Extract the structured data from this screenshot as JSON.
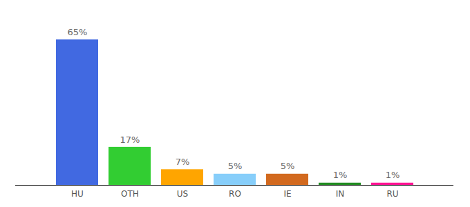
{
  "chart_data": {
    "type": "bar",
    "categories": [
      "HU",
      "OTH",
      "US",
      "RO",
      "IE",
      "IN",
      "RU"
    ],
    "values": [
      65,
      17,
      7,
      5,
      5,
      1,
      1
    ],
    "value_labels": [
      "65%",
      "17%",
      "7%",
      "5%",
      "5%",
      "1%",
      "1%"
    ],
    "colors": [
      "#4169e1",
      "#32cd32",
      "#ffa500",
      "#87cefa",
      "#d2691e",
      "#228b22",
      "#ff1493"
    ],
    "ylim": [
      0,
      70
    ],
    "data_labels": true,
    "tick_labels": "x"
  }
}
